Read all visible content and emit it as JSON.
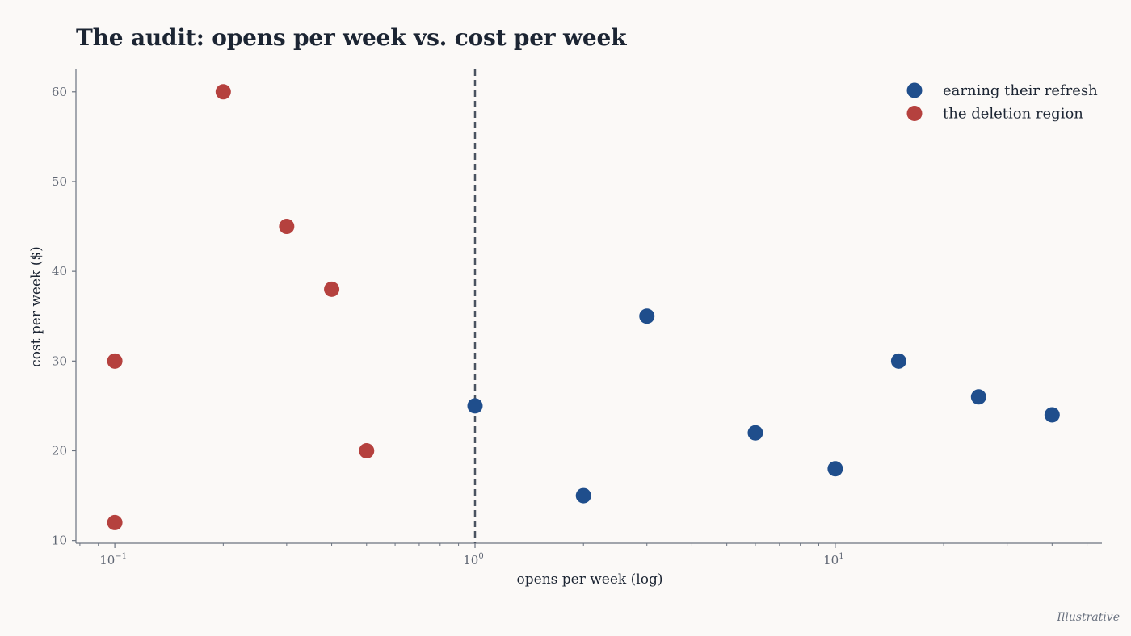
{
  "chart_data": {
    "type": "scatter",
    "title": "The audit: opens per week vs. cost per week",
    "xlabel": "opens per week (log)",
    "ylabel": "cost per week ($)",
    "xscale": "log",
    "xlim": [
      0.078,
      55
    ],
    "ylim": [
      9.7,
      62.5
    ],
    "x_ticks": [
      {
        "value": 0.1,
        "base": "10",
        "exp": "−1"
      },
      {
        "value": 1,
        "base": "10",
        "exp": "0"
      },
      {
        "value": 10,
        "base": "10",
        "exp": "1"
      }
    ],
    "y_ticks": [
      10,
      20,
      30,
      40,
      50,
      60
    ],
    "grid": false,
    "threshold_line": {
      "x": 1,
      "style": "dashed",
      "color": "#4a5360"
    },
    "legend_position": "top-right",
    "series": [
      {
        "name": "earning their refresh",
        "color": "#1f4e8c",
        "points": [
          {
            "x": 1,
            "y": 25
          },
          {
            "x": 2,
            "y": 15
          },
          {
            "x": 3,
            "y": 35
          },
          {
            "x": 6,
            "y": 22
          },
          {
            "x": 10,
            "y": 18
          },
          {
            "x": 15,
            "y": 30
          },
          {
            "x": 25,
            "y": 26
          },
          {
            "x": 40,
            "y": 24
          }
        ]
      },
      {
        "name": "the deletion region",
        "color": "#b5413e",
        "points": [
          {
            "x": 0.1,
            "y": 30
          },
          {
            "x": 0.1,
            "y": 12
          },
          {
            "x": 0.2,
            "y": 60
          },
          {
            "x": 0.3,
            "y": 45
          },
          {
            "x": 0.4,
            "y": 38
          },
          {
            "x": 0.5,
            "y": 20
          }
        ]
      }
    ]
  },
  "footnote": "Illustrative"
}
